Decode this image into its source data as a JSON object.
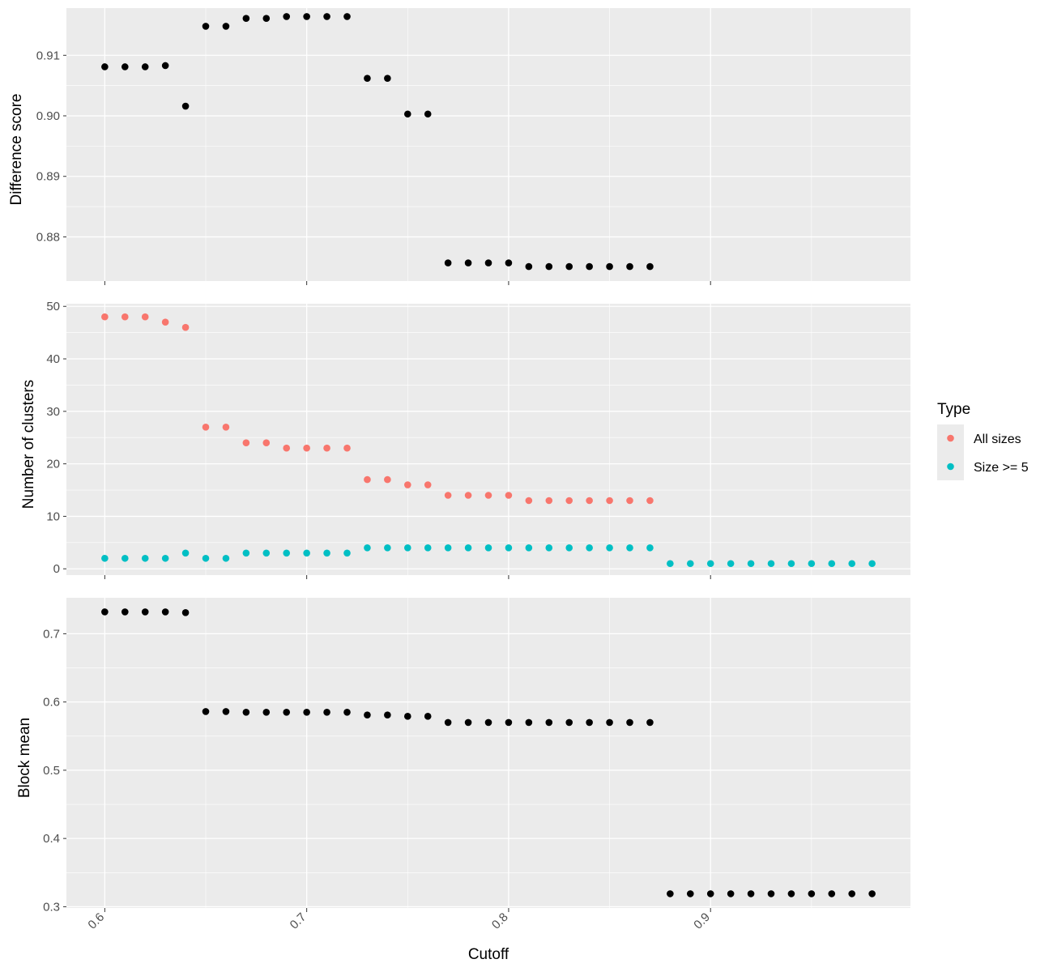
{
  "chart_data": [
    {
      "type": "scatter",
      "panel": "top",
      "ylabel": "Difference score",
      "ylim": [
        0.8727,
        0.9178
      ],
      "yticks": [
        0.88,
        0.89,
        0.9,
        0.91
      ],
      "ytick_labels": [
        "0.88",
        "0.89",
        "0.90",
        "0.91"
      ],
      "series": [
        {
          "color": "#000000",
          "x": [
            0.6,
            0.61,
            0.62,
            0.63,
            0.64,
            0.65,
            0.66,
            0.67,
            0.68,
            0.69,
            0.7,
            0.71,
            0.72,
            0.73,
            0.74,
            0.75,
            0.76,
            0.77,
            0.78,
            0.79,
            0.8,
            0.81,
            0.82,
            0.83,
            0.84,
            0.85,
            0.86,
            0.87
          ],
          "y": [
            0.9081,
            0.9081,
            0.9081,
            0.9083,
            0.9016,
            0.9148,
            0.9148,
            0.9161,
            0.9161,
            0.9164,
            0.9164,
            0.9164,
            0.9164,
            0.9062,
            0.9062,
            0.9003,
            0.9003,
            0.8757,
            0.8757,
            0.8757,
            0.8757,
            0.8751,
            0.8751,
            0.8751,
            0.8751,
            0.8751,
            0.8751,
            0.8751
          ]
        }
      ]
    },
    {
      "type": "scatter",
      "panel": "middle",
      "ylabel": "Number of clusters",
      "ylim": [
        -1.2,
        50.5
      ],
      "yticks": [
        0,
        10,
        20,
        30,
        40,
        50
      ],
      "ytick_labels": [
        "0",
        "10",
        "20",
        "30",
        "40",
        "50"
      ],
      "series": [
        {
          "name": "All sizes",
          "color": "#F8766D",
          "x": [
            0.6,
            0.61,
            0.62,
            0.63,
            0.64,
            0.65,
            0.66,
            0.67,
            0.68,
            0.69,
            0.7,
            0.71,
            0.72,
            0.73,
            0.74,
            0.75,
            0.76,
            0.77,
            0.78,
            0.79,
            0.8,
            0.81,
            0.82,
            0.83,
            0.84,
            0.85,
            0.86,
            0.87
          ],
          "y": [
            48,
            48,
            48,
            47,
            46,
            27,
            27,
            24,
            24,
            23,
            23,
            23,
            23,
            17,
            17,
            16,
            16,
            14,
            14,
            14,
            14,
            13,
            13,
            13,
            13,
            13,
            13,
            13
          ]
        },
        {
          "name": "Size >= 5",
          "color": "#00BFC4",
          "x": [
            0.6,
            0.61,
            0.62,
            0.63,
            0.64,
            0.65,
            0.66,
            0.67,
            0.68,
            0.69,
            0.7,
            0.71,
            0.72,
            0.73,
            0.74,
            0.75,
            0.76,
            0.77,
            0.78,
            0.79,
            0.8,
            0.81,
            0.82,
            0.83,
            0.84,
            0.85,
            0.86,
            0.87,
            0.88,
            0.89,
            0.9,
            0.91,
            0.92,
            0.93,
            0.94,
            0.95,
            0.96,
            0.97,
            0.98
          ],
          "y": [
            2,
            2,
            2,
            2,
            3,
            2,
            2,
            3,
            3,
            3,
            3,
            3,
            3,
            4,
            4,
            4,
            4,
            4,
            4,
            4,
            4,
            4,
            4,
            4,
            4,
            4,
            4,
            4,
            1,
            1,
            1,
            1,
            1,
            1,
            1,
            1,
            1,
            1,
            1
          ]
        }
      ]
    },
    {
      "type": "scatter",
      "panel": "bottom",
      "ylabel": "Block mean",
      "xlabel": "Cutoff",
      "ylim": [
        0.2981,
        0.7527
      ],
      "yticks": [
        0.3,
        0.4,
        0.5,
        0.6,
        0.7
      ],
      "ytick_labels": [
        "0.3",
        "0.4",
        "0.5",
        "0.6",
        "0.7"
      ],
      "series": [
        {
          "color": "#000000",
          "x": [
            0.6,
            0.61,
            0.62,
            0.63,
            0.64,
            0.65,
            0.66,
            0.67,
            0.68,
            0.69,
            0.7,
            0.71,
            0.72,
            0.73,
            0.74,
            0.75,
            0.76,
            0.77,
            0.78,
            0.79,
            0.8,
            0.81,
            0.82,
            0.83,
            0.84,
            0.85,
            0.86,
            0.87,
            0.88,
            0.89,
            0.9,
            0.91,
            0.92,
            0.93,
            0.94,
            0.95,
            0.96,
            0.97,
            0.98
          ],
          "y": [
            0.732,
            0.732,
            0.732,
            0.732,
            0.731,
            0.586,
            0.586,
            0.585,
            0.585,
            0.585,
            0.585,
            0.585,
            0.585,
            0.581,
            0.581,
            0.579,
            0.579,
            0.57,
            0.57,
            0.57,
            0.57,
            0.57,
            0.57,
            0.57,
            0.57,
            0.57,
            0.57,
            0.57,
            0.319,
            0.319,
            0.319,
            0.319,
            0.319,
            0.319,
            0.319,
            0.319,
            0.319,
            0.319,
            0.319
          ]
        }
      ]
    }
  ],
  "x_axis": {
    "xlim": [
      0.581,
      0.999
    ],
    "ticks": [
      0.6,
      0.7,
      0.8,
      0.9
    ],
    "tick_labels": [
      "0.6",
      "0.7",
      "0.8",
      "0.9"
    ],
    "label": "Cutoff"
  },
  "legend": {
    "title": "Type",
    "position": "right",
    "items": [
      {
        "label": "All sizes",
        "color": "#F8766D"
      },
      {
        "label": "Size >= 5",
        "color": "#00BFC4"
      }
    ]
  },
  "colors": {
    "panel_bg": "#EBEBEB",
    "grid": "#FFFFFF",
    "text": "#4D4D4D",
    "title_text": "#000000"
  }
}
